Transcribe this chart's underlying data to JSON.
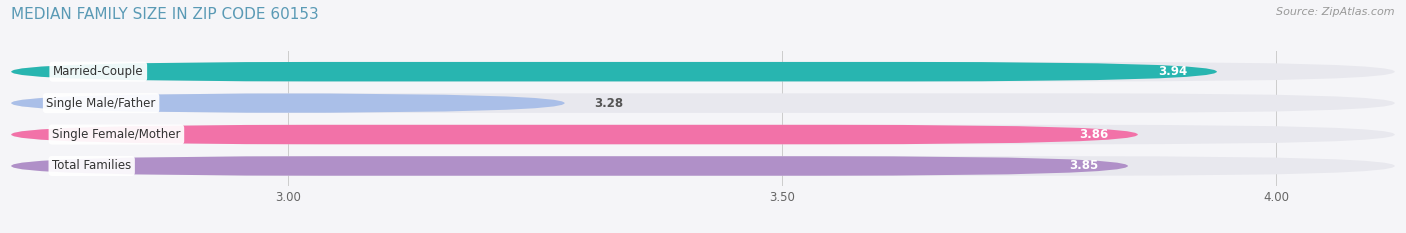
{
  "title": "MEDIAN FAMILY SIZE IN ZIP CODE 60153",
  "source": "Source: ZipAtlas.com",
  "categories": [
    "Married-Couple",
    "Single Male/Father",
    "Single Female/Mother",
    "Total Families"
  ],
  "values": [
    3.94,
    3.28,
    3.86,
    3.85
  ],
  "bar_colors": [
    "#28b5b0",
    "#aabfe8",
    "#f272a8",
    "#b090c8"
  ],
  "bg_bar_color": "#e8e8ee",
  "label_bg_color": "#ffffff",
  "value_inside_color": "white",
  "value_outside_color": "#555555",
  "xlim": [
    2.72,
    4.12
  ],
  "xmin": 2.72,
  "xmax": 4.12,
  "xticks": [
    3.0,
    3.5,
    4.0
  ],
  "xtick_labels": [
    "3.00",
    "3.50",
    "4.00"
  ],
  "title_color": "#5a9ab5",
  "title_fontsize": 11,
  "source_fontsize": 8,
  "bar_height": 0.62,
  "background_color": "#f5f5f8",
  "bar_label_fontsize": 8.5,
  "cat_label_fontsize": 8.5
}
